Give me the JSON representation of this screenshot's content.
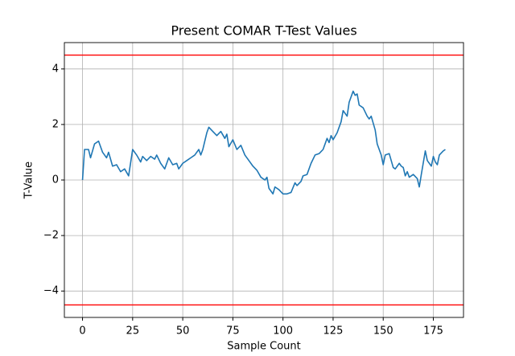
{
  "chart_data": {
    "type": "line",
    "title": "Present COMAR T-Test Values",
    "xlabel": "Sample Count",
    "ylabel": "T-Value",
    "x": [
      0,
      1,
      3,
      4,
      6,
      8,
      10,
      12,
      13,
      15,
      17,
      19,
      21,
      23,
      25,
      27,
      29,
      30,
      32,
      34,
      36,
      37,
      39,
      41,
      43,
      45,
      47,
      48,
      50,
      52,
      54,
      56,
      58,
      59,
      60,
      62,
      63,
      65,
      67,
      69,
      71,
      72,
      73,
      75,
      77,
      79,
      81,
      83,
      85,
      87,
      89,
      91,
      92,
      93,
      95,
      96,
      98,
      100,
      102,
      104,
      106,
      107,
      109,
      110,
      112,
      114,
      116,
      118,
      120,
      122,
      123,
      124,
      125,
      127,
      129,
      130,
      132,
      133,
      135,
      136,
      137,
      138,
      140,
      142,
      143,
      144,
      146,
      147,
      149,
      150,
      151,
      153,
      155,
      156,
      158,
      159,
      160,
      161,
      162,
      163,
      165,
      167,
      168,
      169,
      171,
      172,
      174,
      175,
      176,
      177,
      178,
      180,
      181
    ],
    "values": [
      0,
      1.1,
      1.1,
      0.8,
      1.3,
      1.4,
      1.0,
      0.8,
      1.0,
      0.5,
      0.55,
      0.3,
      0.4,
      0.15,
      1.1,
      0.9,
      0.65,
      0.85,
      0.7,
      0.85,
      0.75,
      0.9,
      0.6,
      0.4,
      0.8,
      0.55,
      0.6,
      0.4,
      0.6,
      0.7,
      0.8,
      0.9,
      1.1,
      0.9,
      1.1,
      1.7,
      1.9,
      1.75,
      1.6,
      1.75,
      1.5,
      1.65,
      1.2,
      1.45,
      1.1,
      1.25,
      0.9,
      0.7,
      0.5,
      0.35,
      0.1,
      0.0,
      0.1,
      -0.3,
      -0.5,
      -0.25,
      -0.35,
      -0.5,
      -0.5,
      -0.45,
      -0.1,
      -0.2,
      -0.05,
      0.15,
      0.2,
      0.6,
      0.9,
      0.95,
      1.1,
      1.5,
      1.35,
      1.6,
      1.45,
      1.7,
      2.1,
      2.5,
      2.3,
      2.8,
      3.2,
      3.05,
      3.1,
      2.7,
      2.6,
      2.3,
      2.2,
      2.3,
      1.8,
      1.3,
      0.9,
      0.55,
      0.9,
      0.95,
      0.45,
      0.4,
      0.6,
      0.5,
      0.45,
      0.15,
      0.3,
      0.1,
      0.2,
      0.05,
      -0.25,
      0.2,
      1.05,
      0.7,
      0.5,
      0.85,
      0.65,
      0.55,
      0.9,
      1.05,
      1.1
    ],
    "color": "#1f77b4",
    "hlines": [
      4.5,
      -4.5
    ],
    "hline_color": "#ff0000",
    "xlim": [
      -9.05,
      190.05
    ],
    "ylim": [
      -4.95,
      4.95
    ],
    "xticks": [
      0,
      25,
      50,
      75,
      100,
      125,
      150,
      175
    ],
    "yticks": [
      {
        "value": -4,
        "label": "−4"
      },
      {
        "value": -2,
        "label": "−2"
      },
      0,
      2,
      4
    ],
    "grid": true
  }
}
